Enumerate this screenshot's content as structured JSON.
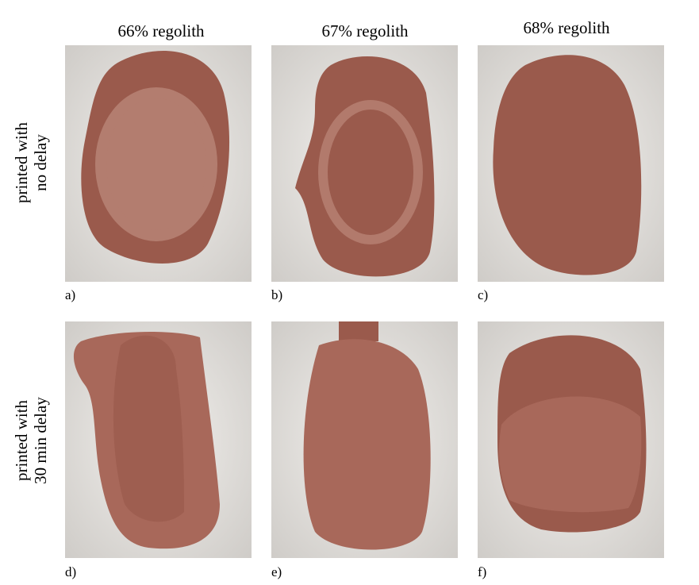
{
  "columns": [
    "66% regolith",
    "67% regolith",
    "68% regolith"
  ],
  "rows": [
    [
      "printed with",
      "no delay"
    ],
    [
      "printed with",
      "30 min delay"
    ]
  ],
  "panels": [
    "a)",
    "b)",
    "c)",
    "d)",
    "e)",
    "f)"
  ]
}
